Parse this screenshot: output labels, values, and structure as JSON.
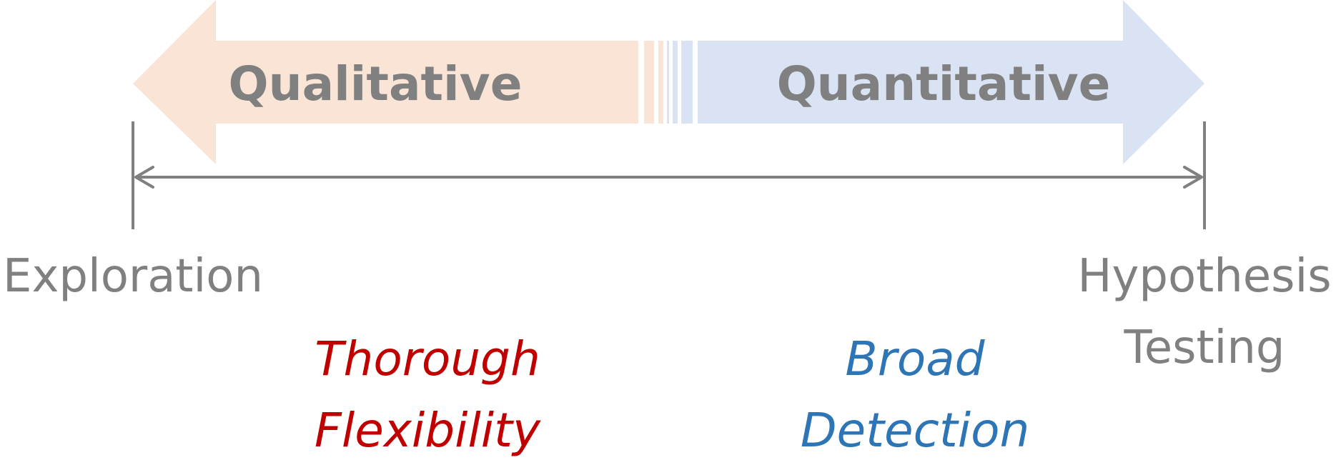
{
  "colors": {
    "qualitative_fill": "#FAE4D6",
    "quantitative_fill": "#D9E3F3",
    "arrow_text": "#808080",
    "axis_line": "#808080",
    "axis_text": "#808080",
    "red_text": "#C00000",
    "blue_text": "#2E75B6"
  },
  "arrows": {
    "left_label": "Qualitative",
    "right_label": "Quantitative"
  },
  "axis": {
    "left_label": "Exploration",
    "right_label_line1": "Hypothesis",
    "right_label_line2": "Testing"
  },
  "traits": {
    "qualitative_line1": "Thorough",
    "qualitative_line2": "Flexibility",
    "quantitative_line1": "Broad",
    "quantitative_line2": "Detection"
  }
}
